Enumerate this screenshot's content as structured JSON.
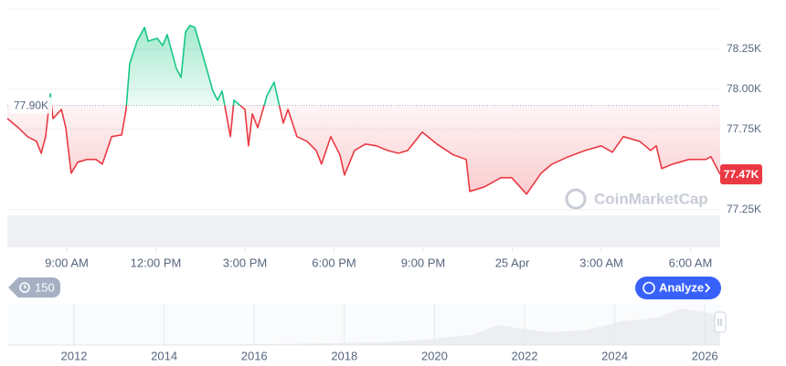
{
  "chart_data": {
    "type": "line",
    "x": [
      7.0,
      7.37,
      7.68,
      7.98,
      8.14,
      8.29,
      8.45,
      8.54,
      8.82,
      8.97,
      9.15,
      9.37,
      9.68,
      9.98,
      10.2,
      10.51,
      10.85,
      11.0,
      11.12,
      11.37,
      11.62,
      11.74,
      12.05,
      12.23,
      12.38,
      12.69,
      12.85,
      13.0,
      13.15,
      13.31,
      13.58,
      13.92,
      14.08,
      14.23,
      14.51,
      14.63,
      15.0,
      15.12,
      15.25,
      15.43,
      15.74,
      15.98,
      16.29,
      16.45,
      16.75,
      17.09,
      17.4,
      17.58,
      17.89,
      18.2,
      18.35,
      18.69,
      19.06,
      19.43,
      19.8,
      20.17,
      20.48,
      20.97,
      21.46,
      22.02,
      22.45,
      22.57,
      23.06,
      23.62,
      23.98,
      24.48,
      24.97,
      25.34,
      25.89,
      26.45,
      27.0,
      27.37,
      27.74,
      28.29,
      28.66,
      28.85,
      29.03,
      29.4,
      29.95,
      30.51,
      30.69,
      31.0
    ],
    "values": [
      77818,
      77761,
      77705,
      77676,
      77602,
      77705,
      77972,
      77818,
      77875,
      77761,
      77477,
      77546,
      77563,
      77563,
      77534,
      77705,
      77716,
      77875,
      78159,
      78301,
      78386,
      78301,
      78318,
      78273,
      78341,
      78131,
      78074,
      78358,
      78398,
      78386,
      78216,
      77989,
      77932,
      77989,
      77705,
      77932,
      77875,
      77648,
      77847,
      77761,
      77960,
      78045,
      77790,
      77875,
      77705,
      77676,
      77619,
      77534,
      77705,
      77591,
      77466,
      77619,
      77659,
      77648,
      77619,
      77602,
      77619,
      77733,
      77659,
      77591,
      77563,
      77364,
      77392,
      77449,
      77449,
      77347,
      77477,
      77534,
      77580,
      77619,
      77648,
      77608,
      77705,
      77676,
      77619,
      77648,
      77506,
      77534,
      77563,
      77563,
      77580,
      77470
    ],
    "color_up": "#16c784",
    "color_down": "#ea3943",
    "xlim": [
      7,
      31
    ],
    "ylim": [
      77220,
      78500
    ],
    "xticks": [
      {
        "value": 9,
        "label": "9:00 AM"
      },
      {
        "value": 12,
        "label": "12:00 PM"
      },
      {
        "value": 15,
        "label": "3:00 PM"
      },
      {
        "value": 18,
        "label": "6:00 PM"
      },
      {
        "value": 21,
        "label": "9:00 PM"
      },
      {
        "value": 24,
        "label": "25 Apr"
      },
      {
        "value": 27,
        "label": "3:00 AM"
      },
      {
        "value": 30,
        "label": "6:00 AM"
      }
    ],
    "yticks": [
      {
        "value": 77250,
        "label": "77.25K"
      },
      {
        "value": 77750,
        "label": "77.75K"
      },
      {
        "value": 78000,
        "label": "78.00K"
      },
      {
        "value": 78250,
        "label": "78.25K"
      }
    ],
    "baseline": {
      "value": 77900,
      "label": "77.90K"
    },
    "current": {
      "value": 77470,
      "label": "77.47K"
    },
    "grid": true
  },
  "watermark": "CoinMarketCap",
  "buttons": {
    "history": "150",
    "analyze": "Analyze"
  },
  "navigator": {
    "labels": [
      "2012",
      "2014",
      "2016",
      "2018",
      "2020",
      "2022",
      "2024",
      "2026"
    ]
  }
}
